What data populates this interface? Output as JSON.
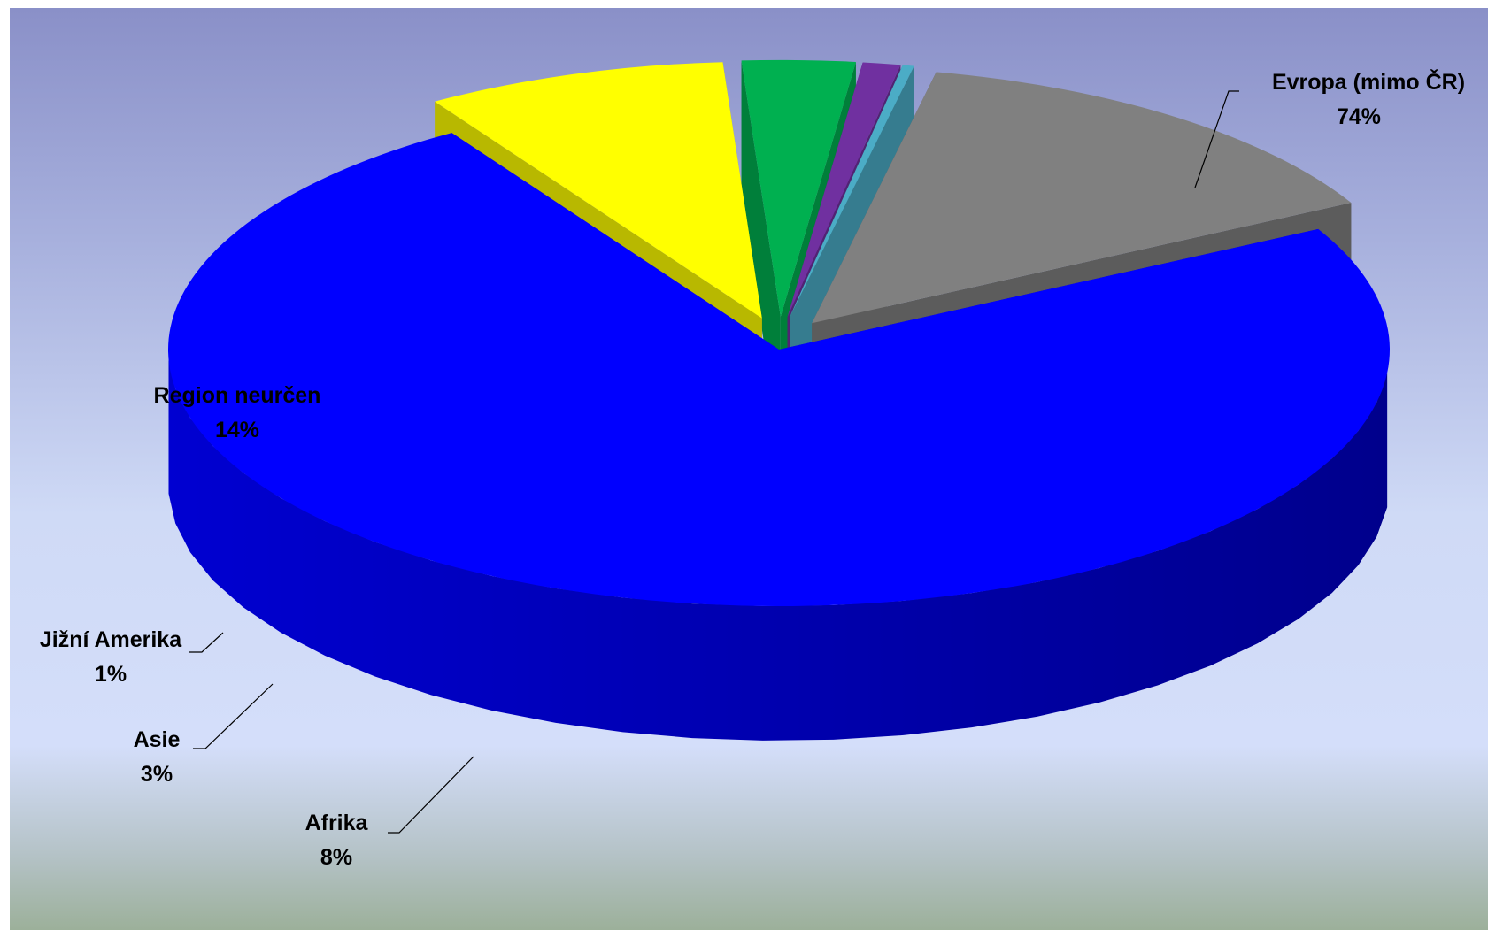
{
  "chart_data": {
    "type": "pie",
    "title": "",
    "style": "3d-exploded",
    "series": [
      {
        "label": "Evropa (mimo ČR)",
        "value": 74,
        "display": "74%",
        "color": "#0000ff"
      },
      {
        "label": "Afrika",
        "value": 8,
        "display": "8%",
        "color": "#ffff00"
      },
      {
        "label": "Asie",
        "value": 3,
        "display": "3%",
        "color": "#00b050"
      },
      {
        "label": "Jižní Amerika",
        "value": 1,
        "display": "1%",
        "color": "#7030a0"
      },
      {
        "label": "",
        "value": 0.3,
        "display": "",
        "color": "#4bacc6"
      },
      {
        "label": "Region neurčen",
        "value": 14,
        "display": "14%",
        "color": "#808080"
      }
    ]
  }
}
